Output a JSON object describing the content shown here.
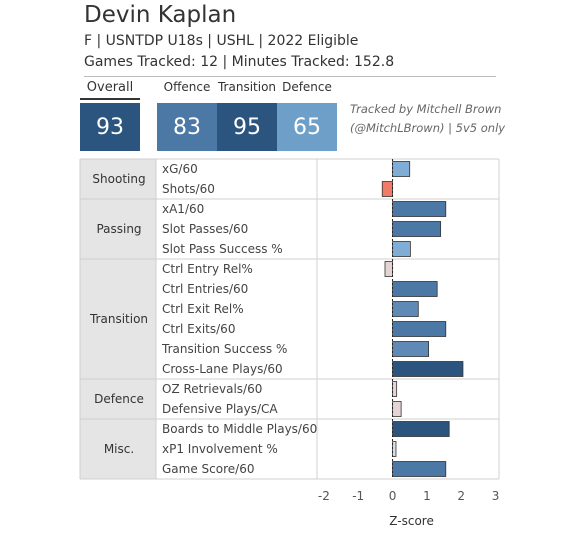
{
  "player": {
    "name": "Devin Kaplan",
    "info": "F | USNTDP U18s | USHL | 2022 Eligible",
    "stats": "Games Tracked: 12 | Minutes Tracked: 152.8"
  },
  "scores": {
    "overall": {
      "label": "Overall",
      "value": "93"
    },
    "offence": {
      "label": "Offence",
      "value": "83"
    },
    "transition": {
      "label": "Transition",
      "value": "95"
    },
    "defence": {
      "label": "Defence",
      "value": "65"
    }
  },
  "credit": {
    "line1": "Tracked by Mitchell Brown",
    "line2": "(@MitchLBrown) | 5v5 only"
  },
  "colors": {
    "score_overall": "#2b547e",
    "score_offence": "#4b78a5",
    "score_transition": "#2b547e",
    "score_defence": "#6d9fc8",
    "group_bg": "#e5e5e5",
    "bar_outline": "#333333",
    "negative_bar": "#f07b66"
  },
  "chart_data": {
    "type": "bar",
    "orientation": "horizontal",
    "xlabel": "Z-score",
    "xlim": [
      -2.2,
      3.1
    ],
    "xticks": [
      "-2",
      "-1",
      "0",
      "1",
      "2",
      "3"
    ],
    "groups": [
      {
        "name": "Shooting",
        "metrics": [
          {
            "label": "xG/60",
            "value": 0.5,
            "color": "#7fadd6"
          },
          {
            "label": "Shots/60",
            "value": -0.3,
            "color": "#f07b66"
          }
        ]
      },
      {
        "name": "Passing",
        "metrics": [
          {
            "label": "xA1/60",
            "value": 1.55,
            "color": "#4b78a5"
          },
          {
            "label": "Slot Passes/60",
            "value": 1.4,
            "color": "#4b78a5"
          },
          {
            "label": "Slot Pass Success %",
            "value": 0.52,
            "color": "#7fadd6"
          }
        ]
      },
      {
        "name": "Transition",
        "metrics": [
          {
            "label": "Ctrl Entry Rel%",
            "value": -0.22,
            "color": "#e6d3d3"
          },
          {
            "label": "Ctrl Entries/60",
            "value": 1.3,
            "color": "#4b78a5"
          },
          {
            "label": "Ctrl Exit Rel%",
            "value": 0.75,
            "color": "#5f8ab5"
          },
          {
            "label": "Ctrl Exits/60",
            "value": 1.55,
            "color": "#4b78a5"
          },
          {
            "label": "Transition Success %",
            "value": 1.05,
            "color": "#5f8ab5"
          },
          {
            "label": "Cross-Lane Plays/60",
            "value": 2.05,
            "color": "#2b547e"
          }
        ]
      },
      {
        "name": "Defence",
        "metrics": [
          {
            "label": "OZ Retrievals/60",
            "value": 0.12,
            "color": "#e6d3d3"
          },
          {
            "label": "Defensive Plays/CA",
            "value": 0.25,
            "color": "#e6d3d3"
          }
        ]
      },
      {
        "name": "Misc.",
        "metrics": [
          {
            "label": "Boards to Middle Plays/60",
            "value": 1.65,
            "color": "#2b547e"
          },
          {
            "label": "xP1 Involvement %",
            "value": 0.1,
            "color": "#dcdce8"
          },
          {
            "label": "Game Score/60",
            "value": 1.55,
            "color": "#4b78a5"
          }
        ]
      }
    ]
  }
}
